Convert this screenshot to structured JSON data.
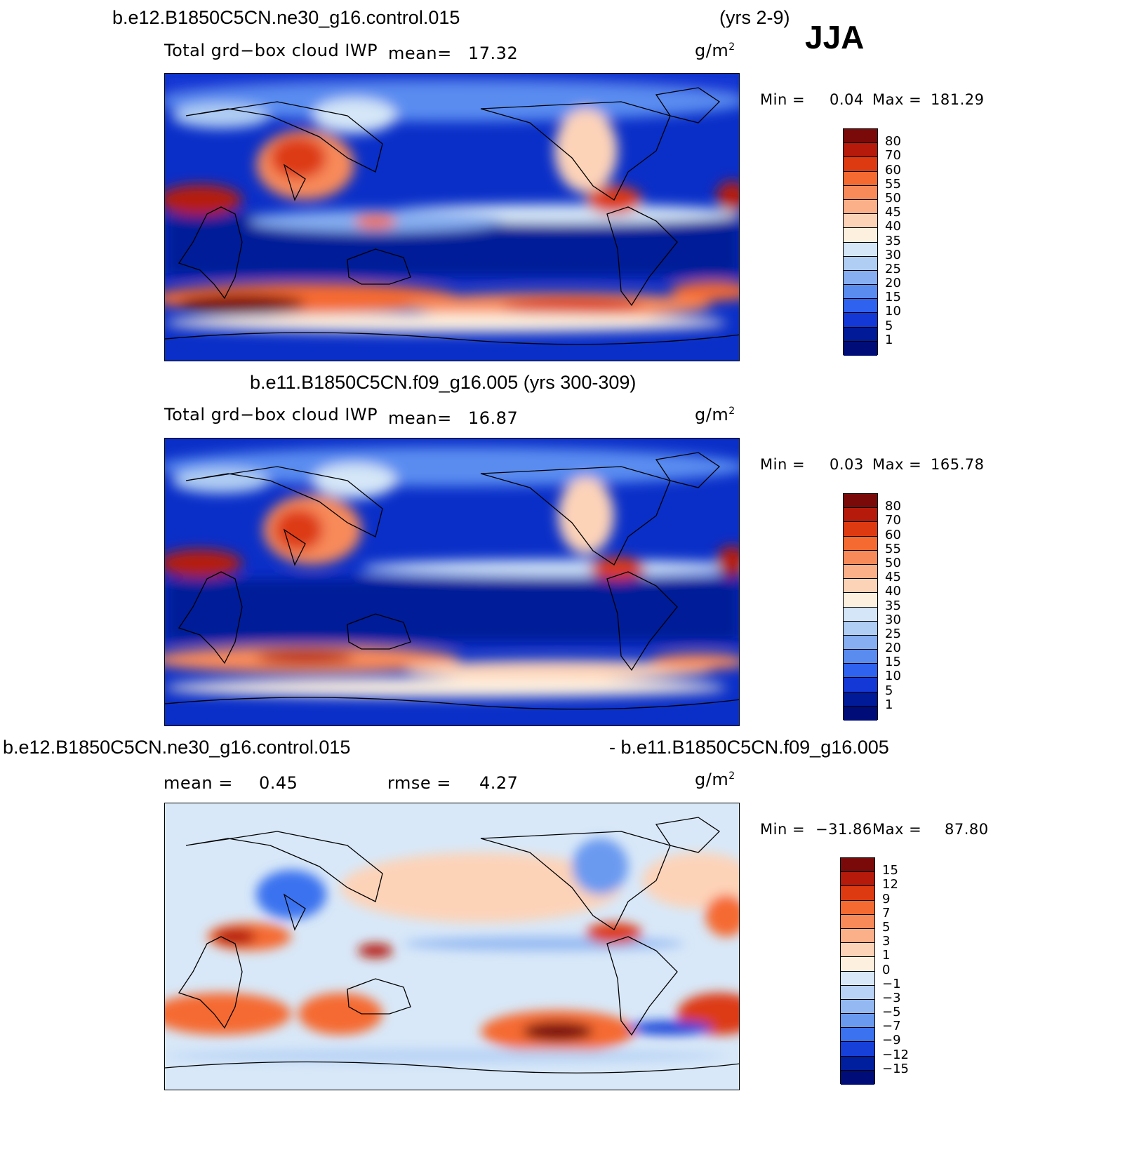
{
  "season": "JJA",
  "units": "g/m",
  "units_sup": "2",
  "panels": [
    {
      "case": "b.e12.B1850C5CN.ne30_g16.control.015",
      "years": "(yrs 2-9)",
      "variable": "Total grd−box cloud IWP",
      "mean_label": "mean=",
      "mean": "17.32",
      "minmax_label_min": "Min =",
      "min": "0.04",
      "minmax_label_max": "Max =",
      "max": "181.29"
    },
    {
      "case": "b.e11.B1850C5CN.f09_g16.005 (yrs 300-309)",
      "variable": "Total grd−box cloud IWP",
      "mean_label": "mean=",
      "mean": "16.87",
      "minmax_label_min": "Min =",
      "min": "0.03",
      "minmax_label_max": "Max =",
      "max": "165.78"
    },
    {
      "case_left": "b.e12.B1850C5CN.ne30_g16.control.015",
      "case_right": "- b.e11.B1850C5CN.f09_g16.005",
      "mean_label": "mean =",
      "mean": "0.45",
      "rmse_label": "rmse =",
      "rmse": "4.27",
      "minmax_label_min": "Min =",
      "min": "−31.86",
      "minmax_label_max": "Max =",
      "max": "87.80"
    }
  ],
  "colorbar_abs": {
    "labels": [
      "80",
      "70",
      "60",
      "55",
      "50",
      "45",
      "40",
      "35",
      "30",
      "25",
      "20",
      "15",
      "10",
      "5",
      "1"
    ],
    "colors": [
      "#7a0a0a",
      "#b51a0a",
      "#dd3a12",
      "#f56a30",
      "#f88a5a",
      "#fbb08a",
      "#fdd3b8",
      "#fdf0df",
      "#d4e6f7",
      "#b0cdf3",
      "#86aef0",
      "#5a8cf0",
      "#2e62ef",
      "#1438d6",
      "#001a98",
      "#000d78"
    ]
  },
  "colorbar_diff": {
    "labels": [
      "15",
      "12",
      "9",
      "7",
      "5",
      "3",
      "1",
      "0",
      "−1",
      "−3",
      "−5",
      "−7",
      "−9",
      "−12",
      "−15"
    ],
    "colors": [
      "#7a0a0a",
      "#b51a0a",
      "#dd3a12",
      "#f56a30",
      "#f88a5a",
      "#fbb08a",
      "#fdd3b8",
      "#fdf0df",
      "#d8e8f8",
      "#b8d3f5",
      "#94b9f2",
      "#6a9af0",
      "#3a72ef",
      "#1640d8",
      "#001f9e",
      "#000d78"
    ]
  }
}
